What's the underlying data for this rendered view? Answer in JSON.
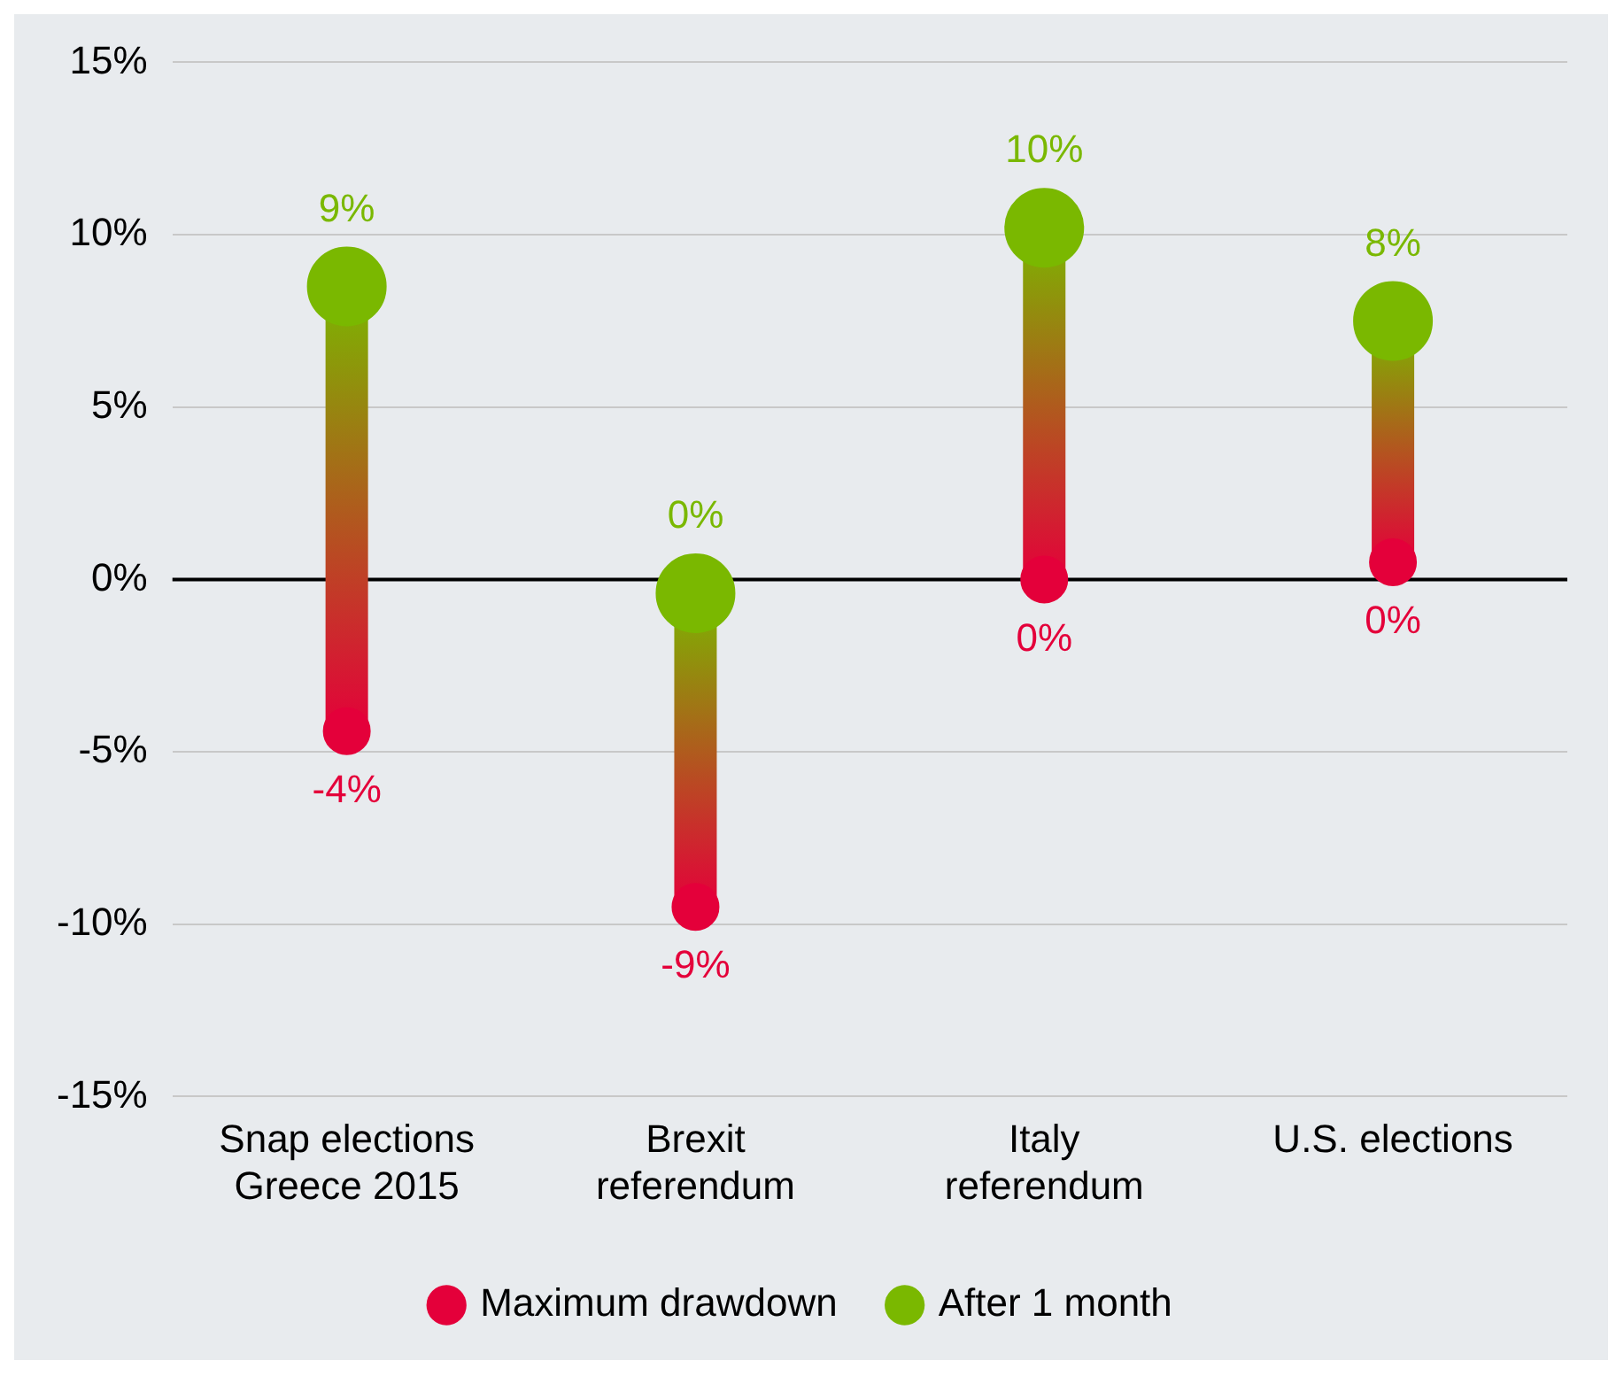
{
  "chart_data": {
    "type": "scatter",
    "categories": [
      "Snap elections Greece 2015",
      "Brexit referendum",
      "Italy referendum",
      "U.S. elections"
    ],
    "series": [
      {
        "name": "Maximum drawdown",
        "color": "#e4003a",
        "values": [
          -4.4,
          -9.5,
          0,
          0.5
        ],
        "value_labels": [
          "-4%",
          "-9%",
          "0%",
          "0%"
        ]
      },
      {
        "name": "After 1 month",
        "color": "#7ab800",
        "values": [
          8.5,
          -0.4,
          10.2,
          7.5
        ],
        "value_labels": [
          "9%",
          "0%",
          "10%",
          "8%"
        ]
      }
    ],
    "ylim": [
      -15,
      15
    ],
    "yticks": [
      {
        "value": -15,
        "label": "-15%"
      },
      {
        "value": -10,
        "label": "-10%"
      },
      {
        "value": -5,
        "label": "-5%"
      },
      {
        "value": 0,
        "label": "0%"
      },
      {
        "value": 5,
        "label": "5%"
      },
      {
        "value": 10,
        "label": "10%"
      },
      {
        "value": 15,
        "label": "15%"
      }
    ],
    "ref_lines": [
      {
        "axis": "y",
        "value": 0,
        "color": "#000000"
      }
    ],
    "grid": "y",
    "legend": "bottom",
    "marker": "circle"
  }
}
